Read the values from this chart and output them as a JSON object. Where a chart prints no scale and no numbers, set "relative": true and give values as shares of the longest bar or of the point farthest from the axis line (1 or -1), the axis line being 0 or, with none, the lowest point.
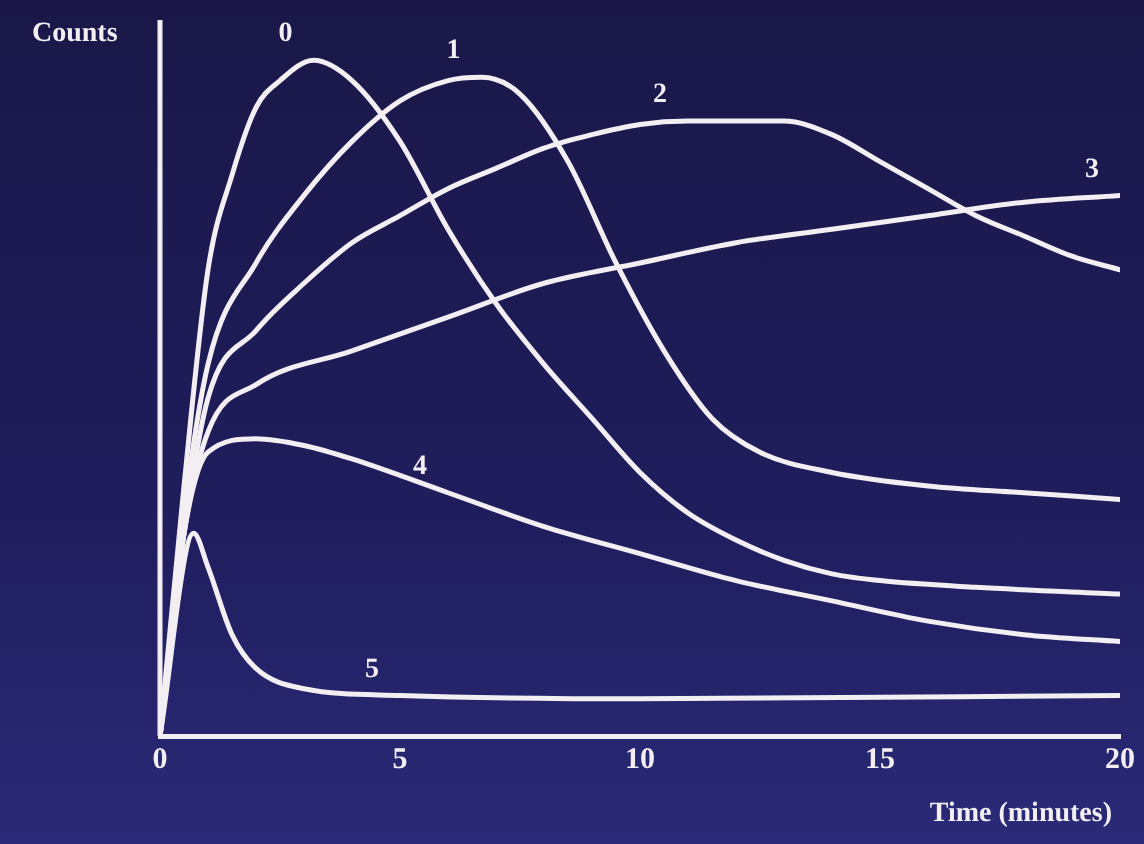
{
  "chart_data": {
    "type": "line",
    "relative": true,
    "xlabel": "Time (minutes)",
    "ylabel": "Counts",
    "xlim": [
      0,
      20
    ],
    "xticks": [
      0,
      5,
      10,
      15,
      20
    ],
    "grid": false,
    "legend": false,
    "marker": "none",
    "line_style": "solid",
    "series": [
      {
        "name": "0",
        "color": "#f2eef2",
        "x": [
          0,
          0.5,
          1,
          1.5,
          2,
          2.5,
          3.2,
          4,
          5,
          6,
          7,
          8,
          9,
          10,
          11,
          12,
          13,
          14,
          15,
          17,
          20
        ],
        "values": [
          0,
          0.37,
          0.69,
          0.83,
          0.93,
          0.97,
          1,
          0.97,
          0.88,
          0.75,
          0.64,
          0.55,
          0.47,
          0.39,
          0.33,
          0.29,
          0.26,
          0.24,
          0.23,
          0.22,
          0.21
        ]
      },
      {
        "name": "1",
        "color": "#f2eef2",
        "x": [
          0,
          0.5,
          1,
          2,
          3,
          4,
          5,
          6,
          6.7,
          7.5,
          8.5,
          9.5,
          10.5,
          11.5,
          12.5,
          14,
          16,
          18,
          20
        ],
        "values": [
          0,
          0.33,
          0.55,
          0.7,
          0.8,
          0.88,
          0.94,
          0.97,
          0.975,
          0.95,
          0.85,
          0.7,
          0.57,
          0.47,
          0.42,
          0.39,
          0.37,
          0.36,
          0.35
        ]
      },
      {
        "name": "2",
        "color": "#f2eef2",
        "x": [
          0,
          0.5,
          1,
          2,
          3,
          4,
          5,
          6,
          7,
          8,
          9,
          10,
          11,
          13,
          14,
          15,
          16,
          17,
          18,
          19,
          20
        ],
        "values": [
          0,
          0.3,
          0.5,
          0.6,
          0.67,
          0.73,
          0.77,
          0.81,
          0.84,
          0.87,
          0.89,
          0.905,
          0.91,
          0.91,
          0.89,
          0.85,
          0.81,
          0.77,
          0.74,
          0.71,
          0.69
        ]
      },
      {
        "name": "3",
        "color": "#f2eef2",
        "x": [
          0,
          0.5,
          1,
          2,
          4,
          6,
          8,
          10,
          12,
          14,
          16,
          18,
          20
        ],
        "values": [
          0,
          0.3,
          0.45,
          0.52,
          0.57,
          0.62,
          0.67,
          0.7,
          0.73,
          0.75,
          0.77,
          0.79,
          0.8
        ]
      },
      {
        "name": "4",
        "color": "#f2eef2",
        "x": [
          0,
          0.5,
          1,
          2,
          3,
          4,
          6,
          8,
          10,
          12,
          14,
          16,
          18,
          20
        ],
        "values": [
          0,
          0.3,
          0.42,
          0.44,
          0.43,
          0.41,
          0.36,
          0.31,
          0.27,
          0.23,
          0.2,
          0.17,
          0.15,
          0.14
        ]
      },
      {
        "name": "5",
        "color": "#f2eef2",
        "x": [
          0,
          0.7,
          1,
          1.5,
          2,
          3,
          5,
          10,
          20
        ],
        "values": [
          0,
          0.3,
          0.25,
          0.15,
          0.1,
          0.07,
          0.06,
          0.055,
          0.06
        ]
      }
    ]
  }
}
